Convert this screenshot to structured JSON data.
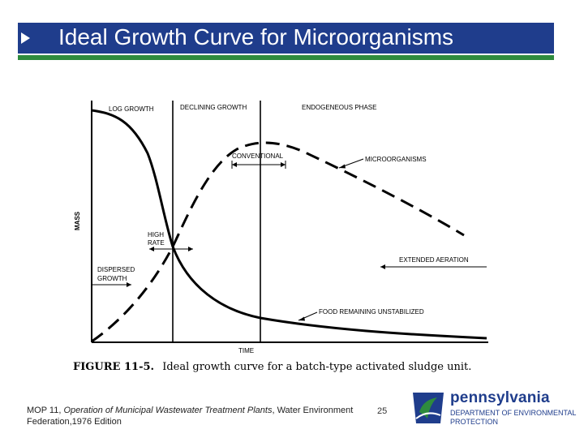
{
  "slide": {
    "title": "Ideal Growth Curve for Microorganisms",
    "citation_prefix": "MOP 11, ",
    "citation_italic": "Operation of Municipal Wastewater Treatment Plants",
    "citation_suffix": ", Water Environment Federation,1976 Edition",
    "page_number": "25",
    "colors": {
      "title_bar": "#1f3d8c",
      "accent_green": "#2e8b3d"
    }
  },
  "figure": {
    "phase_labels": [
      "LOG GROWTH",
      "DECLINING GROWTH",
      "ENDOGENEOUS PHASE"
    ],
    "y_axis_label": "MASS",
    "x_axis_label": "TIME",
    "annotations": {
      "conventional": "CONVENTIONAL",
      "microorganisms": "MICROORGANISMS",
      "high": "HIGH",
      "rate": "RATE",
      "dispersed": "DISPERSED",
      "growth": "GROWTH",
      "extended_aeration": "EXTENDED AERATION",
      "food_remaining": "FOOD REMAINING UNSTABILIZED"
    },
    "caption_number": "FIGURE 11-5.",
    "caption_text": "Ideal growth curve for a batch-type activated sludge unit."
  },
  "logo": {
    "wordmark": "pennsylvania",
    "dept_line1": "DEPARTMENT OF ENVIRONMENTAL",
    "dept_line2": "PROTECTION",
    "icon": "keystone-icon"
  }
}
